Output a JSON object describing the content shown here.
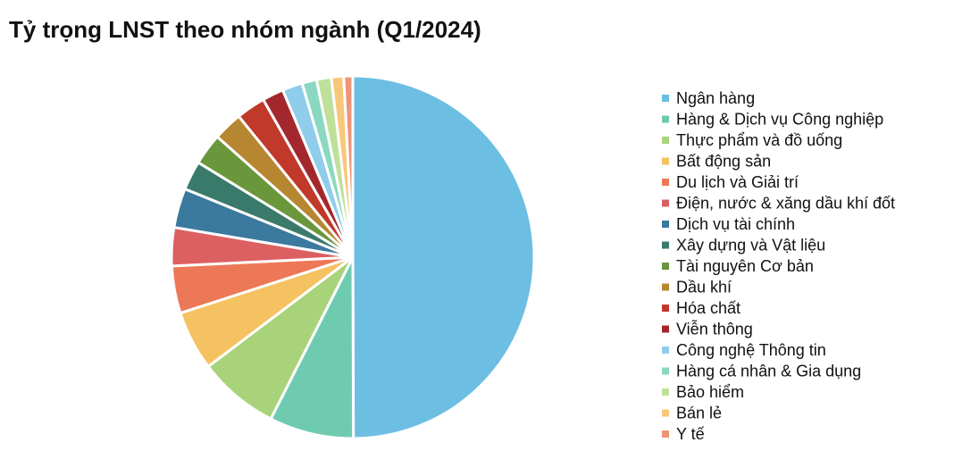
{
  "chart_data": {
    "type": "pie",
    "title": "Tỷ trọng LNST theo nhóm ngành (Q1/2024)",
    "categories": [
      "Ngân hàng",
      "Hàng & Dịch vụ Công nghiệp",
      "Thực phẩm và đồ uống",
      "Bất động sản",
      "Du lịch và Giải trí",
      "Điện, nước & xăng dầu khí đốt",
      "Dịch vụ tài chính",
      "Xây dựng và Vật liệu",
      "Tài nguyên Cơ bản",
      "Dầu khí",
      "Hóa chất",
      "Viễn thông",
      "Công nghệ Thông tin",
      "Hàng cá nhân & Gia dụng",
      "Bảo hiểm",
      "Bán lẻ",
      "Y tế"
    ],
    "values": [
      49.8,
      7.5,
      7.2,
      5.3,
      4.2,
      3.4,
      3.5,
      2.6,
      2.8,
      2.6,
      2.6,
      1.9,
      1.8,
      1.3,
      1.3,
      1.1,
      0.8
    ],
    "colors": [
      "#6dbee3",
      "#6fcbb0",
      "#a9d37a",
      "#f5c261",
      "#ec7858",
      "#dc5f62",
      "#3c799f",
      "#3a7a6a",
      "#6a963c",
      "#b68631",
      "#c0392b",
      "#a3282e",
      "#8fcdea",
      "#8bd8c0",
      "#bfe09a",
      "#f8c77a",
      "#ee9479"
    ],
    "legend": "right"
  }
}
